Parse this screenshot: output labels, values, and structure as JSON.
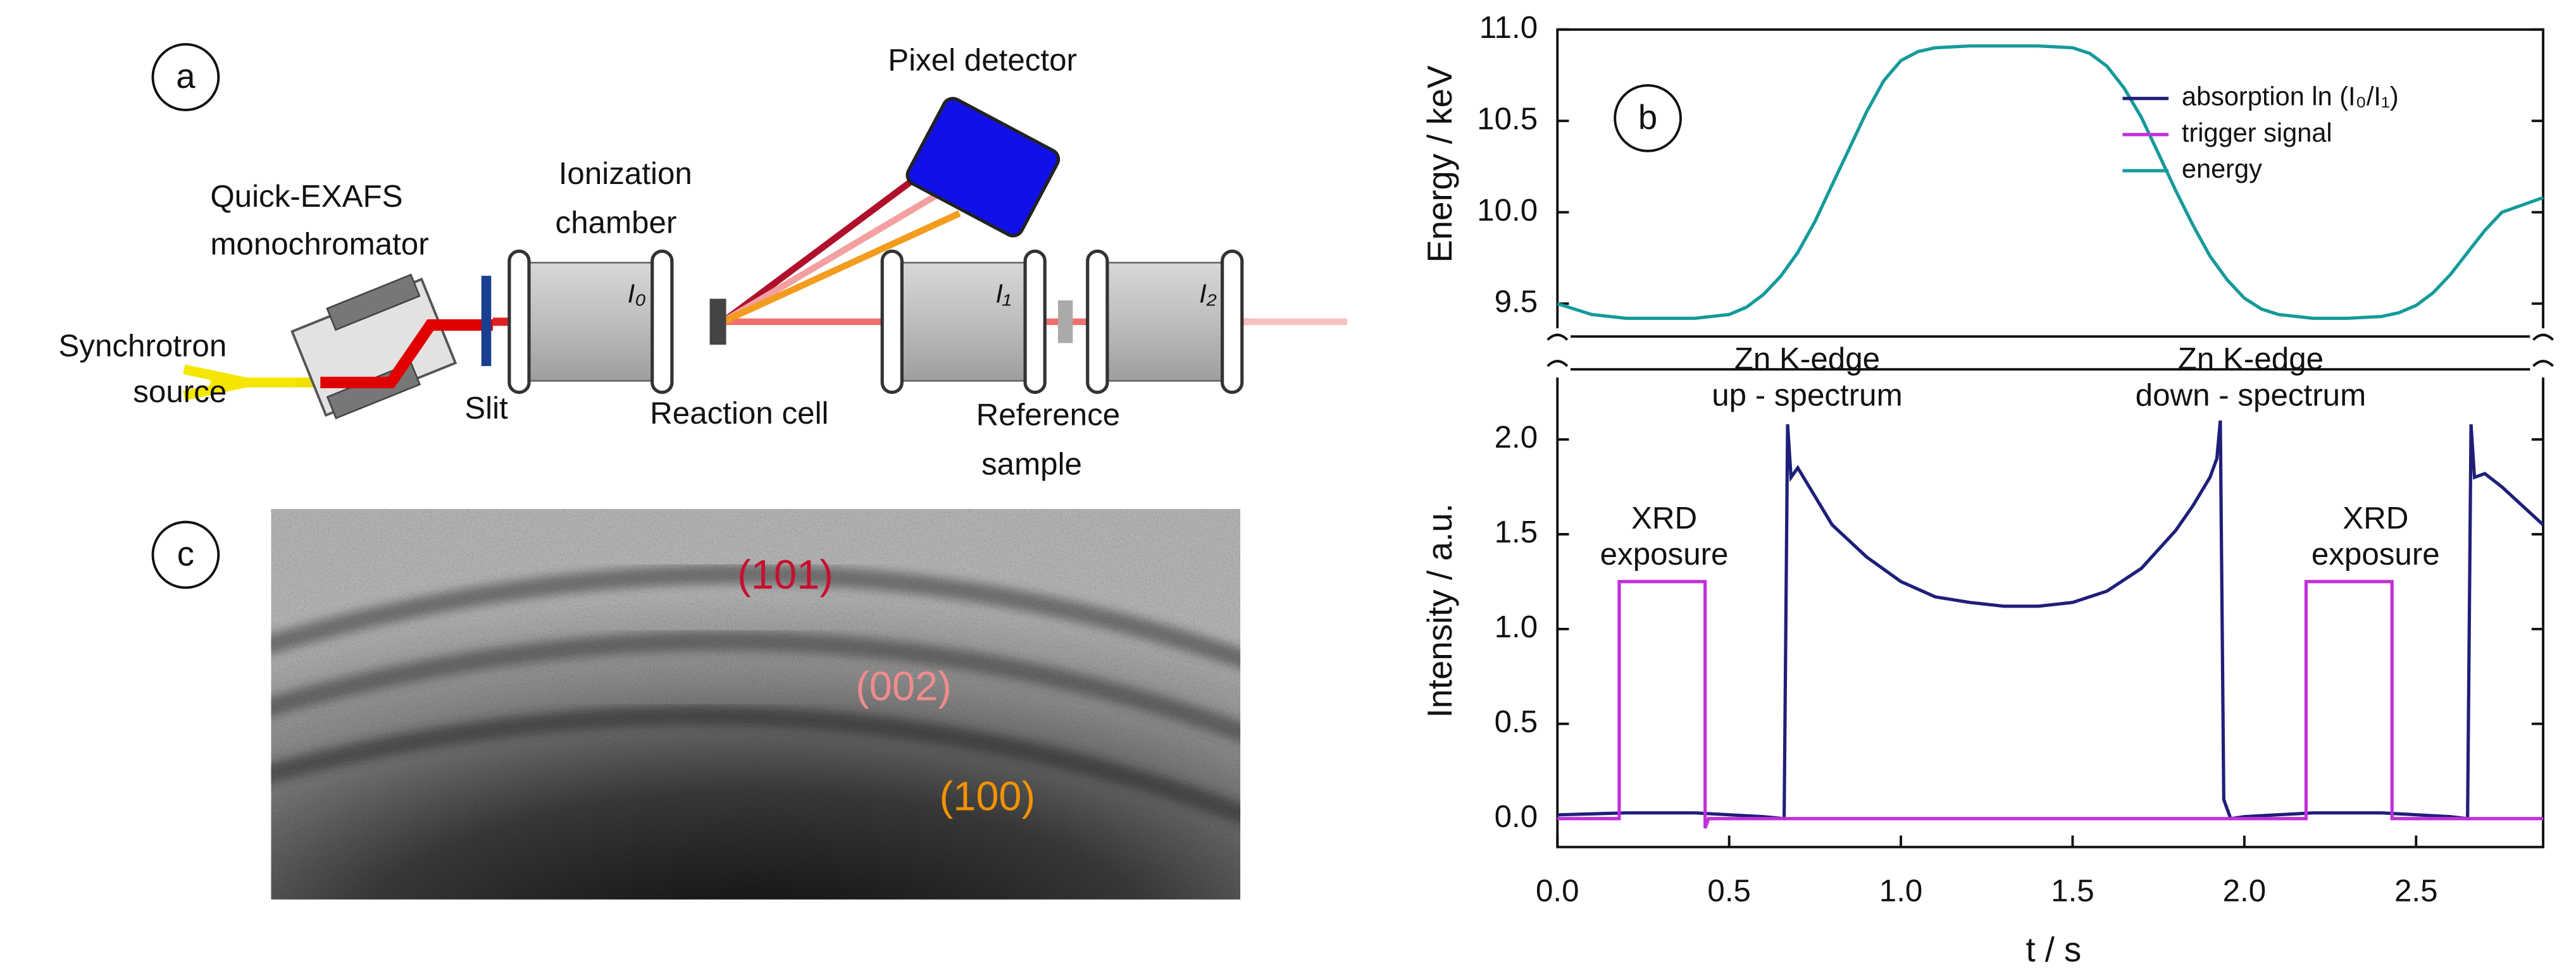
{
  "panel_a": {
    "label": "a",
    "source": [
      "Synchrotron",
      "source"
    ],
    "monochromator": [
      "Quick-EXAFS",
      "monochromator"
    ],
    "slit": "Slit",
    "chamber": [
      "Ionization",
      "chamber"
    ],
    "i0": "I₀",
    "cell": "Reaction cell",
    "detector": "Pixel detector",
    "i1": "I₁",
    "i2": "I₂",
    "reference": [
      "Reference",
      "sample"
    ]
  },
  "panel_c": {
    "label": "c",
    "reflections": [
      {
        "text": "(101)",
        "color": "#c8102e"
      },
      {
        "text": "(002)",
        "color": "#f08c8c"
      },
      {
        "text": "(100)",
        "color": "#f39200"
      }
    ]
  },
  "chart_data": {
    "type": "line",
    "panel_label": "b",
    "xlabel": "t / s",
    "ylabel": "Intensity / a.u.",
    "y2label": "Energy / keV",
    "xlim": [
      0,
      2.87
    ],
    "xticks": [
      {
        "value": 0,
        "label": "0.0"
      },
      0.5,
      {
        "value": 1,
        "label": "1.0"
      },
      1.5,
      {
        "value": 2,
        "label": "2.0"
      },
      2.5
    ],
    "ylim": [
      -0.15,
      2.37
    ],
    "yticks": [
      {
        "value": 0,
        "label": "0.0"
      },
      0.5,
      {
        "value": 1,
        "label": "1.0"
      },
      1.5,
      {
        "value": 2,
        "label": "2.0"
      }
    ],
    "y2lim": [
      9.32,
      11.0
    ],
    "y2ticks": [
      9.5,
      {
        "value": 10,
        "label": "10.0"
      },
      10.5,
      {
        "value": 11,
        "label": "11.0"
      }
    ],
    "legend": "upper right",
    "series": [
      {
        "name": "absorption ln (I₀/I₁)",
        "color": "#1f1f7a",
        "axis": "y",
        "x": [
          0,
          0.2,
          0.4,
          0.6,
          0.66,
          0.67,
          0.68,
          0.7,
          0.75,
          0.8,
          0.9,
          1.0,
          1.1,
          1.2,
          1.3,
          1.4,
          1.5,
          1.6,
          1.7,
          1.8,
          1.85,
          1.9,
          1.92,
          1.93,
          1.94,
          1.96,
          2.0,
          2.2,
          2.4,
          2.6,
          2.65,
          2.66,
          2.67,
          2.7,
          2.75,
          2.87
        ],
        "values": [
          0.02,
          0.03,
          0.03,
          0.01,
          0.0,
          2.08,
          1.8,
          1.85,
          1.7,
          1.55,
          1.38,
          1.25,
          1.17,
          1.14,
          1.12,
          1.12,
          1.14,
          1.2,
          1.32,
          1.52,
          1.65,
          1.8,
          1.9,
          2.1,
          0.1,
          0.0,
          0.01,
          0.03,
          0.03,
          0.01,
          0.0,
          2.08,
          1.8,
          1.82,
          1.75,
          1.55
        ]
      },
      {
        "name": "trigger signal",
        "color": "#c030d8",
        "axis": "y",
        "x": [
          0,
          0.18,
          0.18,
          0.43,
          0.43,
          0.44,
          2.18,
          2.18,
          2.43,
          2.43,
          2.87
        ],
        "values": [
          0,
          0,
          1.25,
          1.25,
          -0.05,
          0,
          0,
          1.25,
          1.25,
          0,
          0
        ]
      },
      {
        "name": "energy",
        "color": "#159a9a",
        "axis": "y2",
        "x": [
          0,
          0.1,
          0.2,
          0.3,
          0.4,
          0.5,
          0.55,
          0.6,
          0.65,
          0.7,
          0.75,
          0.8,
          0.85,
          0.9,
          0.95,
          1.0,
          1.05,
          1.1,
          1.2,
          1.3,
          1.4,
          1.5,
          1.55,
          1.6,
          1.65,
          1.7,
          1.75,
          1.8,
          1.85,
          1.9,
          1.95,
          2.0,
          2.05,
          2.1,
          2.2,
          2.3,
          2.4,
          2.45,
          2.5,
          2.55,
          2.6,
          2.65,
          2.7,
          2.75,
          2.87
        ],
        "values": [
          9.5,
          9.44,
          9.42,
          9.42,
          9.42,
          9.44,
          9.48,
          9.55,
          9.65,
          9.78,
          9.95,
          10.15,
          10.35,
          10.55,
          10.72,
          10.83,
          10.88,
          10.9,
          10.91,
          10.91,
          10.91,
          10.9,
          10.87,
          10.8,
          10.68,
          10.52,
          10.32,
          10.12,
          9.93,
          9.76,
          9.63,
          9.53,
          9.47,
          9.44,
          9.42,
          9.42,
          9.43,
          9.45,
          9.49,
          9.56,
          9.66,
          9.78,
          9.9,
          10.0,
          10.08
        ]
      }
    ],
    "annotations": [
      {
        "lines": [
          "Zn K-edge",
          "up - spectrum"
        ]
      },
      {
        "lines": [
          "Zn K-edge",
          "down - spectrum"
        ]
      },
      {
        "lines": [
          "XRD",
          "exposure"
        ]
      },
      {
        "lines": [
          "XRD",
          "exposure"
        ]
      }
    ]
  }
}
